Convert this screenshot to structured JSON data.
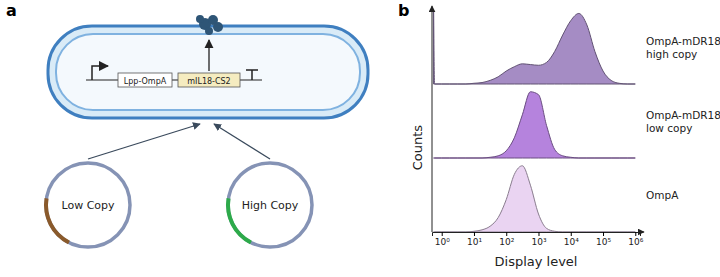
{
  "figure": {
    "panel_labels": [
      "a",
      "b"
    ]
  },
  "diagram": {
    "genes": [
      "Lpp-OmpA",
      "mIL18-CS2"
    ],
    "plasmids": [
      "Low Copy",
      "High Copy"
    ]
  },
  "chart_data": {
    "type": "area",
    "x_label": "Display level",
    "y_label": "Counts",
    "log": "x",
    "tick_labels": "x",
    "xlim": [
      0.5,
      1400000
    ],
    "xticks": [
      {
        "value": 1,
        "label": "10⁰"
      },
      {
        "value": 10,
        "label": "10¹"
      },
      {
        "value": 100,
        "label": "10²"
      },
      {
        "value": 1000,
        "label": "10³"
      },
      {
        "value": 10000,
        "label": "10⁴"
      },
      {
        "value": 100000,
        "label": "10⁵"
      },
      {
        "value": 1000000,
        "label": "10⁶"
      }
    ],
    "ylim": [
      0,
      100
    ],
    "x": [
      0.56,
      0.6,
      1,
      1.78,
      3.16,
      5.62,
      10,
      17.8,
      31.6,
      56.2,
      100,
      178,
      316,
      562,
      1000,
      1780,
      3160,
      5620,
      10000,
      17800,
      31600,
      56200,
      100000,
      178000,
      316000,
      562000,
      1000000
    ],
    "series": [
      {
        "name": "OmpA-mDR18 high copy",
        "color": "#a58cc4",
        "values": [
          100,
          0,
          0,
          0,
          0,
          0,
          1,
          2,
          5,
          10,
          18,
          24,
          28,
          27,
          26,
          30,
          45,
          68,
          88,
          98,
          82,
          45,
          18,
          5,
          1,
          0,
          0
        ]
      },
      {
        "name": "OmpA-mDR18 low copy",
        "color": "#b583dd",
        "values": [
          0,
          0,
          0,
          0,
          0,
          0,
          0,
          0,
          1,
          3,
          10,
          28,
          60,
          92,
          88,
          45,
          12,
          3,
          1,
          0,
          0,
          0,
          0,
          0,
          0,
          0,
          0
        ]
      },
      {
        "name": "OmpA",
        "color": "#ead4f2",
        "values": [
          0,
          0,
          0,
          0,
          0,
          0,
          1,
          3,
          8,
          20,
          45,
          80,
          92,
          65,
          25,
          5,
          1,
          0,
          0,
          0,
          0,
          0,
          0,
          0,
          0,
          0,
          0
        ]
      }
    ]
  }
}
